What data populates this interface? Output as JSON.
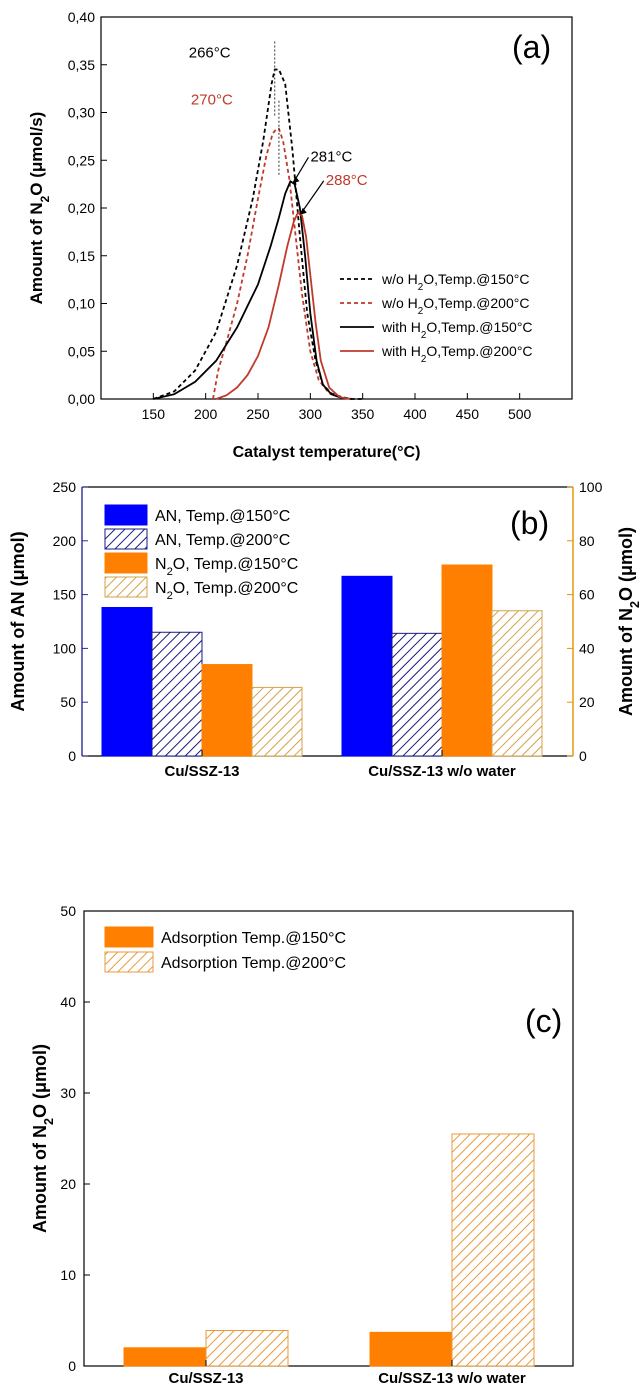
{
  "chart_data": [
    {
      "panel": "(a)",
      "type": "line",
      "xlabel": "Catalyst temperature(°C)",
      "ylabel": [
        "Amount of N",
        "2",
        "O (",
        "μ",
        "mol/s)"
      ],
      "xlim": [
        100,
        550
      ],
      "ylim": [
        0,
        0.4
      ],
      "xticks": [
        "150",
        "200",
        "250",
        "300",
        "350",
        "400",
        "450",
        "500"
      ],
      "yticks": [
        "0,00",
        "0,05",
        "0,10",
        "0,15",
        "0,20",
        "0,25",
        "0,30",
        "0,35",
        "0,40"
      ],
      "legend_position": "right",
      "grid": false,
      "series": [
        {
          "name": "w/o H2O,Temp.@150°C",
          "name_parts": [
            "w/o H",
            "2",
            "O,Temp.@150°C"
          ],
          "color": "#000000",
          "dash": true,
          "x": [
            150,
            170,
            190,
            210,
            230,
            245,
            255,
            263,
            266,
            270,
            276,
            283,
            290,
            297,
            305,
            312,
            320,
            330,
            340,
            350
          ],
          "y": [
            0.0,
            0.008,
            0.03,
            0.07,
            0.14,
            0.21,
            0.27,
            0.33,
            0.345,
            0.345,
            0.33,
            0.26,
            0.17,
            0.09,
            0.04,
            0.015,
            0.006,
            0.002,
            0.0,
            0.0
          ]
        },
        {
          "name": "w/o H2O,Temp.@200°C",
          "name_parts": [
            "w/o H",
            "2",
            "O,Temp.@200°C"
          ],
          "color": "#c0392b",
          "dash": true,
          "x": [
            207,
            212,
            220,
            230,
            240,
            250,
            258,
            264,
            268,
            270,
            274,
            280,
            286,
            292,
            300,
            308,
            318,
            330,
            340
          ],
          "y": [
            0.0,
            0.03,
            0.06,
            0.1,
            0.15,
            0.21,
            0.255,
            0.278,
            0.283,
            0.283,
            0.27,
            0.23,
            0.17,
            0.11,
            0.05,
            0.02,
            0.006,
            0.001,
            0.0
          ]
        },
        {
          "name": "with H2O,Temp.@150°C",
          "name_parts": [
            "with H",
            "2",
            "O,Temp.@150°C"
          ],
          "color": "#000000",
          "dash": false,
          "x": [
            150,
            170,
            190,
            210,
            230,
            250,
            262,
            270,
            276,
            281,
            285,
            290,
            295,
            300,
            306,
            312,
            320,
            330,
            340
          ],
          "y": [
            0.0,
            0.005,
            0.018,
            0.04,
            0.075,
            0.12,
            0.16,
            0.19,
            0.215,
            0.228,
            0.225,
            0.2,
            0.15,
            0.09,
            0.04,
            0.015,
            0.005,
            0.001,
            0.0
          ]
        },
        {
          "name": "with H2O,Temp.@200°C",
          "name_parts": [
            "with H",
            "2",
            "O,Temp.@200°C"
          ],
          "color": "#c0392b",
          "dash": false,
          "x": [
            210,
            220,
            230,
            240,
            250,
            260,
            270,
            278,
            284,
            288,
            292,
            296,
            300,
            305,
            310,
            318,
            328,
            338
          ],
          "y": [
            0.0,
            0.004,
            0.012,
            0.025,
            0.045,
            0.075,
            0.12,
            0.16,
            0.185,
            0.195,
            0.192,
            0.17,
            0.13,
            0.08,
            0.04,
            0.012,
            0.002,
            0.0
          ]
        }
      ],
      "annotations": [
        {
          "text": "266°C",
          "color": "#000000",
          "peak_x": 266,
          "peak_y": 0.345
        },
        {
          "text": "270°C",
          "color": "#c0392b",
          "peak_x": 270,
          "peak_y": 0.283
        },
        {
          "text": "281°C",
          "color": "#000000",
          "peak_x": 281,
          "peak_y": 0.228
        },
        {
          "text": "288°C",
          "color": "#c0392b",
          "peak_x": 288,
          "peak_y": 0.195
        }
      ]
    },
    {
      "panel": "(b)",
      "type": "bar",
      "categories": [
        "Cu/SSZ-13",
        "Cu/SSZ-13 w/o water"
      ],
      "ylabel_left": [
        "Amount of AN (",
        "μ",
        "mol)"
      ],
      "ylabel_right": [
        "Amount of N",
        "2",
        "O (",
        "μ",
        "mol)"
      ],
      "ylim_left": [
        0,
        250
      ],
      "ylim_right": [
        0,
        100
      ],
      "yticks_left": [
        "0",
        "50",
        "100",
        "150",
        "200",
        "250"
      ],
      "yticks_right": [
        "0",
        "20",
        "40",
        "60",
        "80",
        "100"
      ],
      "legend_position": "top-left",
      "series": [
        {
          "name": "AN, Temp.@150°C",
          "name_parts": [
            "AN, Temp.@150°C"
          ],
          "axis": "left",
          "values": [
            138,
            167
          ],
          "color": "#0000ff",
          "hatch": false
        },
        {
          "name": "AN, Temp.@200°C",
          "name_parts": [
            "AN, Temp.@200°C"
          ],
          "axis": "left",
          "values": [
            115,
            114
          ],
          "color": "#1a1a80",
          "hatch": true
        },
        {
          "name": "N2O, Temp.@150°C",
          "name_parts": [
            "N",
            "2",
            "O, Temp.@150°C"
          ],
          "axis": "right",
          "values": [
            34,
            71
          ],
          "color": "#ff8000",
          "hatch": false
        },
        {
          "name": "N2O, Temp.@200°C",
          "name_parts": [
            "N",
            "2",
            "O, Temp.@200°C"
          ],
          "axis": "right",
          "values": [
            25.5,
            54
          ],
          "color": "#d4a24a",
          "hatch": true
        }
      ],
      "colors": {
        "left_axis": "#2a2a9a",
        "right_axis": "#e59400"
      }
    },
    {
      "panel": "(c)",
      "type": "bar",
      "categories": [
        "Cu/SSZ-13",
        "Cu/SSZ-13 w/o water"
      ],
      "ylabel": [
        "Amount of N",
        "2",
        "O (",
        "μ",
        "mol)"
      ],
      "ylim": [
        0,
        50
      ],
      "yticks": [
        "0",
        "10",
        "20",
        "30",
        "40",
        "50"
      ],
      "legend_position": "top-left",
      "series": [
        {
          "name": "Adsorption Temp.@150°C",
          "values": [
            2.0,
            3.7
          ],
          "color": "#ff8000",
          "hatch": false
        },
        {
          "name": "Adsorption Temp.@200°C",
          "values": [
            3.9,
            25.5
          ],
          "color": "#e89a3c",
          "hatch": true
        }
      ]
    }
  ]
}
